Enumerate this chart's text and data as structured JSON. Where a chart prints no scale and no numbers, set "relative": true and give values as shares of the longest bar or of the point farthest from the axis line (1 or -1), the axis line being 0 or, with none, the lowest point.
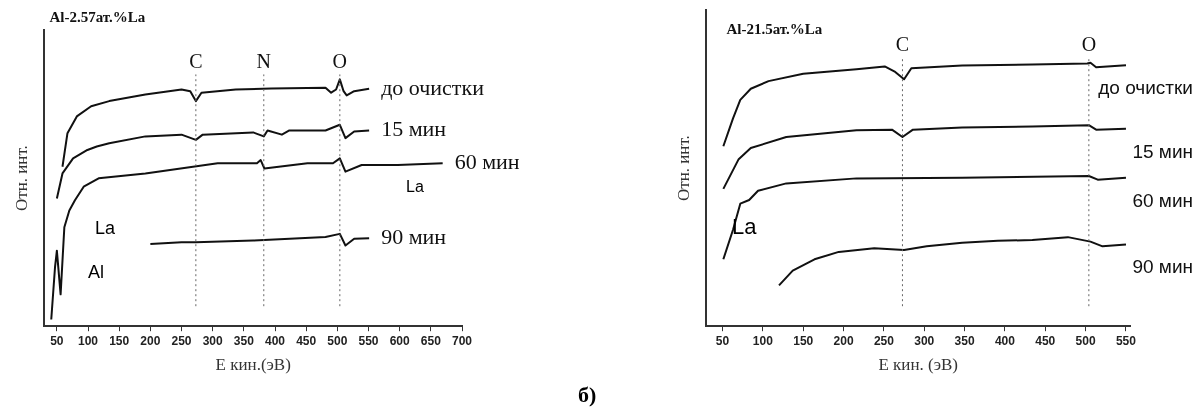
{
  "chart_data": [
    {
      "type": "line",
      "title": "Al-2.57ат.%La",
      "xlabel": "E кин.(эВ)",
      "ylabel": "Отн. инт.",
      "relative": true,
      "xlim": [
        30,
        700
      ],
      "xticks": [
        50,
        100,
        150,
        200,
        250,
        300,
        350,
        400,
        450,
        500,
        550,
        600,
        650,
        700
      ],
      "grid": false,
      "legend": false,
      "marker": "none",
      "line_style": "solid",
      "series": [
        {
          "name": "до очистки",
          "color": "#111111",
          "x": [
            59,
            67,
            82,
            105,
            134,
            192,
            250,
            264,
            273,
            282,
            337,
            394,
            481,
            490,
            498,
            504,
            510,
            515,
            527,
            551
          ],
          "values": [
            0.646,
            0.782,
            0.85,
            0.891,
            0.912,
            0.939,
            0.959,
            0.952,
            0.912,
            0.946,
            0.959,
            0.963,
            0.966,
            0.946,
            0.959,
            1.0,
            0.952,
            0.935,
            0.952,
            0.962
          ]
        },
        {
          "name": "15 мин",
          "color": "#111111",
          "x": [
            50,
            59,
            76,
            99,
            114,
            134,
            192,
            250,
            273,
            284,
            365,
            382,
            388,
            411,
            423,
            481,
            504,
            513,
            527,
            551
          ],
          "values": [
            0.517,
            0.619,
            0.68,
            0.714,
            0.728,
            0.741,
            0.769,
            0.776,
            0.755,
            0.776,
            0.785,
            0.769,
            0.793,
            0.776,
            0.793,
            0.793,
            0.816,
            0.762,
            0.789,
            0.793
          ]
        },
        {
          "name": "60 мин",
          "color": "#111111",
          "x": [
            41,
            47,
            50,
            56,
            62,
            70,
            79,
            93,
            117,
            192,
            308,
            371,
            377,
            383,
            452,
            493,
            504,
            513,
            539,
            597,
            669
          ],
          "values": [
            0.027,
            0.238,
            0.306,
            0.129,
            0.401,
            0.469,
            0.51,
            0.565,
            0.599,
            0.619,
            0.66,
            0.66,
            0.673,
            0.639,
            0.66,
            0.66,
            0.68,
            0.626,
            0.653,
            0.653,
            0.66
          ]
        },
        {
          "name": "90 мин",
          "color": "#111111",
          "x": [
            200,
            250,
            273,
            365,
            481,
            504,
            513,
            527,
            551
          ],
          "values": [
            0.333,
            0.34,
            0.34,
            0.347,
            0.361,
            0.374,
            0.327,
            0.354,
            0.356
          ]
        }
      ],
      "ref_lines": [
        {
          "axis": "x",
          "value": 273,
          "label": "C",
          "color": "#666666",
          "line_style": "dotted"
        },
        {
          "axis": "x",
          "value": 382,
          "label": "N",
          "color": "#666666",
          "line_style": "dotted"
        },
        {
          "axis": "x",
          "value": 504,
          "label": "O",
          "color": "#666666",
          "line_style": "dotted"
        }
      ],
      "annotations": [
        "La",
        "Al",
        "La"
      ]
    },
    {
      "type": "line",
      "title": "Al-21.5ат.%La",
      "xlabel": "E кин. (эВ)",
      "ylabel": "Отн. инт.",
      "relative": true,
      "xlim": [
        30,
        555
      ],
      "xticks": [
        50,
        100,
        150,
        200,
        250,
        300,
        350,
        400,
        450,
        500,
        550
      ],
      "grid": false,
      "legend": false,
      "marker": "none",
      "line_style": "solid",
      "series": [
        {
          "name": "до очистки",
          "color": "#111111",
          "x": [
            51,
            63,
            72,
            85,
            107,
            150,
            216,
            251,
            264,
            275,
            284,
            347,
            434,
            502,
            506,
            513,
            550
          ],
          "values": [
            0.683,
            0.789,
            0.859,
            0.901,
            0.93,
            0.958,
            0.975,
            0.986,
            0.965,
            0.937,
            0.979,
            0.989,
            0.993,
            0.997,
            1.0,
            0.983,
            0.99
          ]
        },
        {
          "name": "15 мин",
          "color": "#111111",
          "x": [
            51,
            70,
            85,
            129,
            216,
            260,
            273,
            286,
            347,
            434,
            504,
            513,
            550
          ],
          "values": [
            0.521,
            0.634,
            0.676,
            0.718,
            0.744,
            0.746,
            0.718,
            0.746,
            0.754,
            0.758,
            0.763,
            0.746,
            0.749
          ]
        },
        {
          "name": "60 мин",
          "color": "#111111",
          "x": [
            51,
            63,
            72,
            83,
            94,
            129,
            216,
            347,
            504,
            515,
            550
          ],
          "values": [
            0.254,
            0.366,
            0.465,
            0.479,
            0.514,
            0.542,
            0.561,
            0.563,
            0.57,
            0.556,
            0.563
          ]
        },
        {
          "name": "90 мин",
          "color": "#111111",
          "x": [
            120,
            137,
            164,
            194,
            238,
            275,
            303,
            347,
            391,
            434,
            478,
            506,
            521,
            550
          ],
          "values": [
            0.155,
            0.211,
            0.254,
            0.282,
            0.296,
            0.289,
            0.303,
            0.317,
            0.324,
            0.327,
            0.338,
            0.321,
            0.303,
            0.31
          ]
        }
      ],
      "ref_lines": [
        {
          "axis": "x",
          "value": 273,
          "label": "C",
          "color": "#666666",
          "line_style": "dotted"
        },
        {
          "axis": "x",
          "value": 504,
          "label": "O",
          "color": "#666666",
          "line_style": "dotted"
        }
      ],
      "annotations": [
        "La",
        "б)"
      ]
    }
  ]
}
